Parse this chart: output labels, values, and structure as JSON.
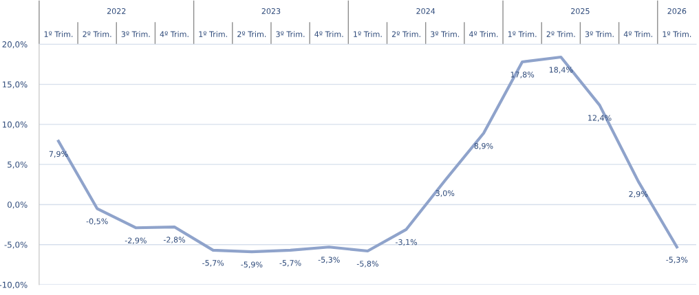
{
  "chart_data": {
    "type": "line",
    "categories": [
      "1º Trim.",
      "2º Trim.",
      "3º Trim.",
      "4º Trim.",
      "1º Trim.",
      "2º Trim.",
      "3º Trim.",
      "4º Trim.",
      "1º Trim.",
      "2º Trim.",
      "3º Trim.",
      "4º Trim.",
      "1º Trim.",
      "2º Trim.",
      "3º Trim.",
      "4º Trim.",
      "1º Trim."
    ],
    "series": [
      {
        "color": "#8fa3cb",
        "values": [
          7.9,
          -0.5,
          -2.9,
          -2.8,
          -5.7,
          -5.9,
          -5.7,
          -5.3,
          -5.8,
          -3.1,
          3.0,
          8.9,
          17.8,
          18.4,
          12.4,
          2.9,
          -5.3
        ],
        "value_labels": [
          "7,9%",
          "-0,5%",
          "-2,9%",
          "-2,8%",
          "-5,7%",
          "-5,9%",
          "-5,7%",
          "-5,3%",
          "-5,8%",
          "-3,1%",
          "3,0%",
          "8,9%",
          "17,8%",
          "18,4%",
          "12,4%",
          "2,9%",
          "-5,3%"
        ]
      }
    ],
    "annotations": [
      "2022",
      "2023",
      "2024",
      "2025",
      "2026"
    ],
    "ylim": [
      -10,
      20
    ],
    "yticks": [
      {
        "value": -10,
        "label": "-10,0%"
      },
      {
        "value": -5,
        "label": "-5,0%"
      },
      {
        "value": 0,
        "label": "0,0%"
      },
      {
        "value": 5,
        "label": "5,0%"
      },
      {
        "value": 10,
        "label": "10,0%"
      },
      {
        "value": 15,
        "label": "15,0%"
      },
      {
        "value": 20,
        "label": "20,0%"
      }
    ],
    "grid": "y",
    "marker": "none",
    "line_style": "solid"
  }
}
